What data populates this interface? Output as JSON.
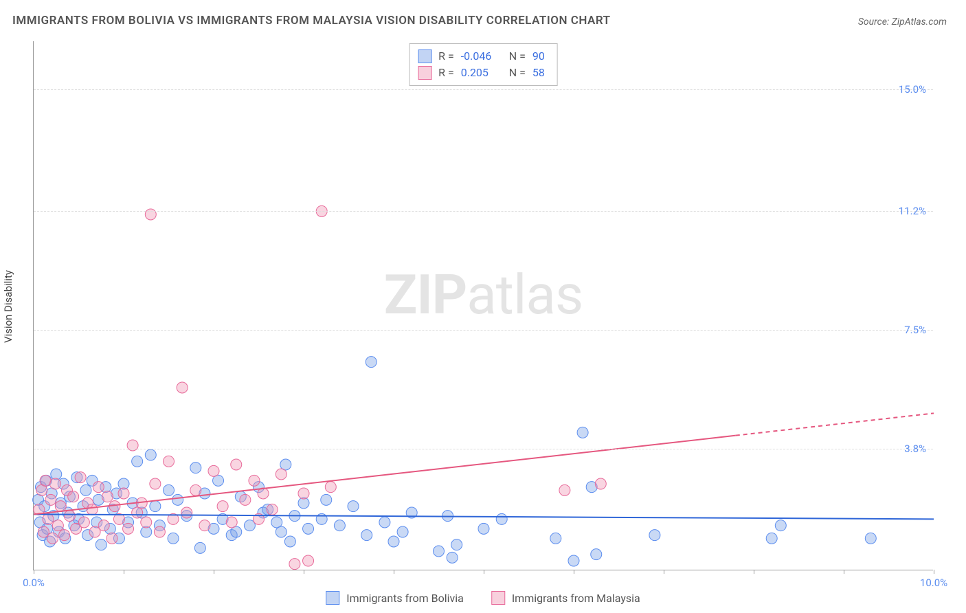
{
  "title": "IMMIGRANTS FROM BOLIVIA VS IMMIGRANTS FROM MALAYSIA VISION DISABILITY CORRELATION CHART",
  "source": "Source: ZipAtlas.com",
  "watermark_bold": "ZIP",
  "watermark_rest": "atlas",
  "y_axis_title": "Vision Disability",
  "chart": {
    "type": "scatter",
    "xlim": [
      0,
      10
    ],
    "ylim": [
      0,
      16.5
    ],
    "x_ticks": [
      0,
      1,
      2,
      3,
      4,
      5,
      6,
      7,
      8,
      9,
      10
    ],
    "x_tick_labels": {
      "0": "0.0%",
      "10": "10.0%"
    },
    "y_gridlines": [
      3.8,
      7.5,
      11.2,
      15.0
    ],
    "y_tick_labels": [
      "3.8%",
      "7.5%",
      "11.2%",
      "15.0%"
    ],
    "background_color": "#ffffff",
    "grid_color": "#dddddd",
    "axis_color": "#999999",
    "tick_label_color": "#5b8def",
    "series": [
      {
        "name": "Immigrants from Bolivia",
        "color_fill": "rgba(120,160,230,0.40)",
        "color_stroke": "#5b8def",
        "marker_r": 8,
        "R": "-0.046",
        "N": "90",
        "trend": {
          "y_at_x0": 1.75,
          "y_at_x10": 1.6,
          "solid_to_x": 10.0,
          "line_color": "#2f66d8",
          "line_width": 2
        },
        "points": [
          [
            0.05,
            2.2
          ],
          [
            0.07,
            1.5
          ],
          [
            0.08,
            2.6
          ],
          [
            0.1,
            1.1
          ],
          [
            0.12,
            2.0
          ],
          [
            0.14,
            2.8
          ],
          [
            0.15,
            1.3
          ],
          [
            0.18,
            0.9
          ],
          [
            0.2,
            2.4
          ],
          [
            0.22,
            1.7
          ],
          [
            0.25,
            3.0
          ],
          [
            0.28,
            1.2
          ],
          [
            0.3,
            2.1
          ],
          [
            0.33,
            2.7
          ],
          [
            0.35,
            1.0
          ],
          [
            0.38,
            1.8
          ],
          [
            0.4,
            2.3
          ],
          [
            0.45,
            1.4
          ],
          [
            0.48,
            2.9
          ],
          [
            0.5,
            1.6
          ],
          [
            0.55,
            2.0
          ],
          [
            0.58,
            2.5
          ],
          [
            0.6,
            1.1
          ],
          [
            0.65,
            2.8
          ],
          [
            0.7,
            1.5
          ],
          [
            0.72,
            2.2
          ],
          [
            0.75,
            0.8
          ],
          [
            0.8,
            2.6
          ],
          [
            0.85,
            1.3
          ],
          [
            0.88,
            1.9
          ],
          [
            0.92,
            2.4
          ],
          [
            0.95,
            1.0
          ],
          [
            1.0,
            2.7
          ],
          [
            1.05,
            1.5
          ],
          [
            1.1,
            2.1
          ],
          [
            1.15,
            3.4
          ],
          [
            1.2,
            1.8
          ],
          [
            1.25,
            1.2
          ],
          [
            1.3,
            3.6
          ],
          [
            1.35,
            2.0
          ],
          [
            1.4,
            1.4
          ],
          [
            1.5,
            2.5
          ],
          [
            1.55,
            1.0
          ],
          [
            1.6,
            2.2
          ],
          [
            1.7,
            1.7
          ],
          [
            1.8,
            3.2
          ],
          [
            1.85,
            0.7
          ],
          [
            1.9,
            2.4
          ],
          [
            2.0,
            1.3
          ],
          [
            2.05,
            2.8
          ],
          [
            2.1,
            1.6
          ],
          [
            2.2,
            1.1
          ],
          [
            2.25,
            1.2
          ],
          [
            2.3,
            2.3
          ],
          [
            2.4,
            1.4
          ],
          [
            2.5,
            2.6
          ],
          [
            2.55,
            1.8
          ],
          [
            2.6,
            1.9
          ],
          [
            2.7,
            1.5
          ],
          [
            2.75,
            1.2
          ],
          [
            2.8,
            3.3
          ],
          [
            2.85,
            0.9
          ],
          [
            2.9,
            1.7
          ],
          [
            3.0,
            2.1
          ],
          [
            3.05,
            1.3
          ],
          [
            3.2,
            1.6
          ],
          [
            3.25,
            2.2
          ],
          [
            3.4,
            1.4
          ],
          [
            3.55,
            2.0
          ],
          [
            3.7,
            1.1
          ],
          [
            3.75,
            6.5
          ],
          [
            3.9,
            1.5
          ],
          [
            4.0,
            0.9
          ],
          [
            4.1,
            1.2
          ],
          [
            4.2,
            1.8
          ],
          [
            4.5,
            0.6
          ],
          [
            4.6,
            1.7
          ],
          [
            4.65,
            0.4
          ],
          [
            4.7,
            0.8
          ],
          [
            5.0,
            1.3
          ],
          [
            5.2,
            1.6
          ],
          [
            5.8,
            1.0
          ],
          [
            6.0,
            0.3
          ],
          [
            6.1,
            4.3
          ],
          [
            6.2,
            2.6
          ],
          [
            6.25,
            0.5
          ],
          [
            6.9,
            1.1
          ],
          [
            8.2,
            1.0
          ],
          [
            8.3,
            1.4
          ],
          [
            9.3,
            1.0
          ]
        ]
      },
      {
        "name": "Immigrants from Malaysia",
        "color_fill": "rgba(240,150,180,0.40)",
        "color_stroke": "#e86a9a",
        "marker_r": 8,
        "R": "0.205",
        "N": "58",
        "trend": {
          "y_at_x0": 1.75,
          "y_at_x10": 4.9,
          "solid_to_x": 7.8,
          "line_color": "#e5577f",
          "line_width": 2
        },
        "points": [
          [
            0.06,
            1.9
          ],
          [
            0.09,
            2.5
          ],
          [
            0.11,
            1.2
          ],
          [
            0.13,
            2.8
          ],
          [
            0.16,
            1.6
          ],
          [
            0.19,
            2.2
          ],
          [
            0.21,
            1.0
          ],
          [
            0.24,
            2.7
          ],
          [
            0.27,
            1.4
          ],
          [
            0.3,
            2.0
          ],
          [
            0.34,
            1.1
          ],
          [
            0.37,
            2.5
          ],
          [
            0.4,
            1.7
          ],
          [
            0.44,
            2.3
          ],
          [
            0.47,
            1.3
          ],
          [
            0.52,
            2.9
          ],
          [
            0.56,
            1.5
          ],
          [
            0.6,
            2.1
          ],
          [
            0.65,
            1.9
          ],
          [
            0.68,
            1.2
          ],
          [
            0.72,
            2.6
          ],
          [
            0.78,
            1.4
          ],
          [
            0.82,
            2.3
          ],
          [
            0.87,
            1.0
          ],
          [
            0.9,
            2.0
          ],
          [
            0.95,
            1.6
          ],
          [
            1.0,
            2.4
          ],
          [
            1.05,
            1.3
          ],
          [
            1.1,
            3.9
          ],
          [
            1.15,
            1.8
          ],
          [
            1.2,
            2.1
          ],
          [
            1.25,
            1.5
          ],
          [
            1.3,
            11.1
          ],
          [
            1.35,
            2.7
          ],
          [
            1.4,
            1.2
          ],
          [
            1.5,
            3.4
          ],
          [
            1.55,
            1.6
          ],
          [
            1.65,
            5.7
          ],
          [
            1.7,
            1.8
          ],
          [
            1.8,
            2.5
          ],
          [
            1.9,
            1.4
          ],
          [
            2.0,
            3.1
          ],
          [
            2.1,
            2.0
          ],
          [
            2.2,
            1.5
          ],
          [
            2.25,
            3.3
          ],
          [
            2.35,
            2.2
          ],
          [
            2.45,
            2.8
          ],
          [
            2.5,
            1.6
          ],
          [
            2.55,
            2.4
          ],
          [
            2.65,
            1.9
          ],
          [
            2.75,
            3.0
          ],
          [
            2.9,
            0.2
          ],
          [
            3.0,
            2.4
          ],
          [
            3.05,
            0.3
          ],
          [
            3.2,
            11.2
          ],
          [
            3.3,
            2.6
          ],
          [
            5.9,
            2.5
          ],
          [
            6.3,
            2.7
          ]
        ]
      }
    ]
  },
  "legend": {
    "series1": "Immigrants from Bolivia",
    "series2": "Immigrants from Malaysia"
  },
  "stats_labels": {
    "R": "R =",
    "N": "N ="
  }
}
